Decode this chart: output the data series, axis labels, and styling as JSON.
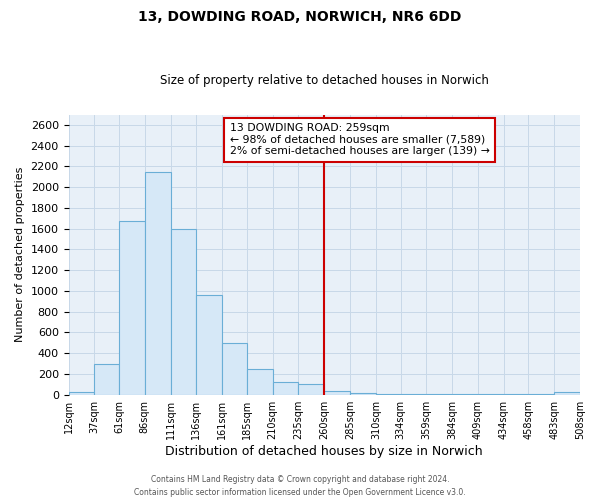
{
  "title1": "13, DOWDING ROAD, NORWICH, NR6 6DD",
  "title2": "Size of property relative to detached houses in Norwich",
  "xlabel": "Distribution of detached houses by size in Norwich",
  "ylabel": "Number of detached properties",
  "bar_color": "#d6e8f7",
  "bar_edge_color": "#6aaed6",
  "bin_edges": [
    12,
    37,
    61,
    86,
    111,
    136,
    161,
    185,
    210,
    235,
    260,
    285,
    310,
    334,
    359,
    384,
    409,
    434,
    458,
    483,
    508
  ],
  "bar_heights": [
    22,
    295,
    1670,
    2145,
    1600,
    960,
    500,
    250,
    125,
    100,
    40,
    15,
    10,
    5,
    5,
    5,
    5,
    5,
    5,
    22
  ],
  "tick_labels": [
    "12sqm",
    "37sqm",
    "61sqm",
    "86sqm",
    "111sqm",
    "136sqm",
    "161sqm",
    "185sqm",
    "210sqm",
    "235sqm",
    "260sqm",
    "285sqm",
    "310sqm",
    "334sqm",
    "359sqm",
    "384sqm",
    "409sqm",
    "434sqm",
    "458sqm",
    "483sqm",
    "508sqm"
  ],
  "vline_x": 260,
  "vline_color": "#cc0000",
  "annotation_text": "13 DOWDING ROAD: 259sqm\n← 98% of detached houses are smaller (7,589)\n2% of semi-detached houses are larger (139) →",
  "annotation_box_color": "#cc0000",
  "ylim": [
    0,
    2700
  ],
  "yticks": [
    0,
    200,
    400,
    600,
    800,
    1000,
    1200,
    1400,
    1600,
    1800,
    2000,
    2200,
    2400,
    2600
  ],
  "grid_color": "#c8d8e8",
  "bg_color": "#e8f0f8",
  "fig_bg_color": "#ffffff",
  "footnote1": "Contains HM Land Registry data © Crown copyright and database right 2024.",
  "footnote2": "Contains public sector information licensed under the Open Government Licence v3.0."
}
